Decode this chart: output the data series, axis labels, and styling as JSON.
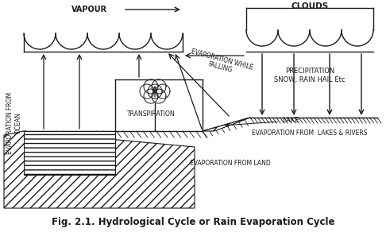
{
  "title": "Fig. 2.1. Hydrological Cycle or Rain Evaporation Cycle",
  "background_color": "#ffffff",
  "line_color": "#1a1a1a",
  "labels": {
    "vapour": "VAPOUR",
    "evap_while_falling": "EVAPORATION WHILE\nFALLING",
    "evap_from_ocean": "EVAPORATION FROM\nOCEAN",
    "transpiration": "TRANSPIRATION",
    "lake": "LAKE",
    "evap_lakes_rivers": "EVAPORATION FROM  LAKES & RIVERS",
    "evap_from_land": "EVAPORATION FROM LAND",
    "clouds": "CLOUDS",
    "precipitation": "PRECIPITATION\nSNOW, RAIN HAIL Etc"
  },
  "figsize": [
    4.86,
    2.92
  ],
  "dpi": 100
}
